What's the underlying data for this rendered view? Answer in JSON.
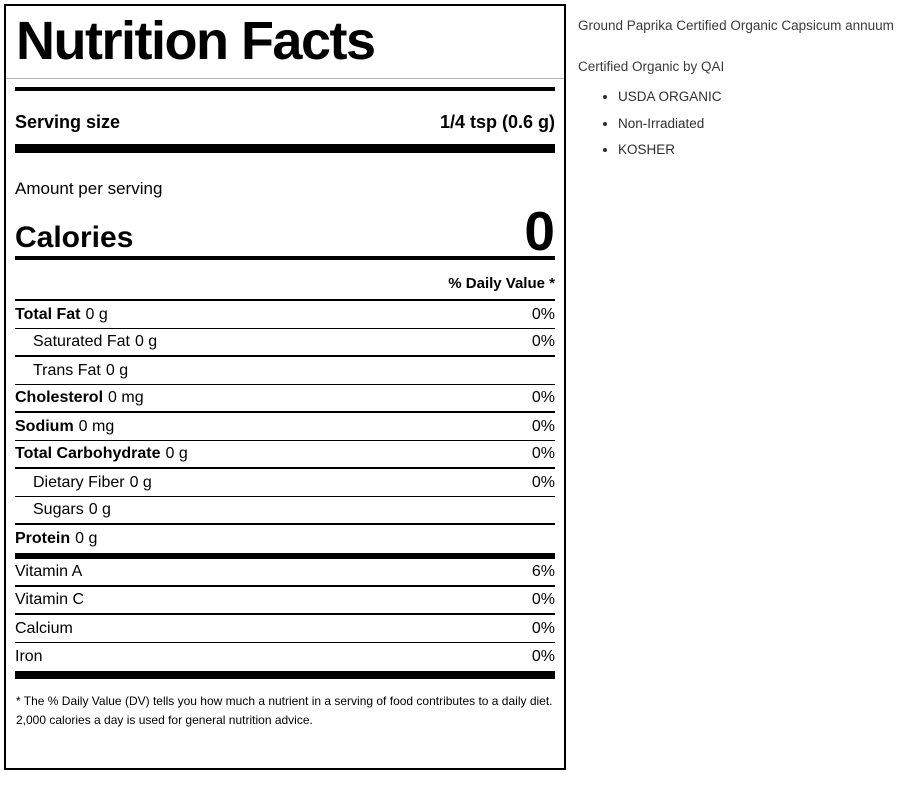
{
  "label": {
    "title": "Nutrition Facts",
    "serving_size_label": "Serving size",
    "serving_size_value": "1/4 tsp (0.6 g)",
    "amount_per_serving": "Amount per serving",
    "calories_label": "Calories",
    "calories_value": "0",
    "daily_value_header": "% Daily Value *",
    "nutrients": [
      {
        "label": "Total Fat",
        "amount": "0 g",
        "dv": "0%",
        "style": "main",
        "sep": 1
      },
      {
        "label": "Saturated Fat",
        "amount": "0 g",
        "dv": "0%",
        "style": "sub",
        "sep": 2
      },
      {
        "label": "Trans Fat",
        "amount": "0 g",
        "dv": "",
        "style": "sub",
        "sep": 1
      },
      {
        "label": "Cholesterol",
        "amount": "0 mg",
        "dv": "0%",
        "style": "main",
        "sep": 2
      },
      {
        "label": "Sodium",
        "amount": "0 mg",
        "dv": "0%",
        "style": "main",
        "sep": 1
      },
      {
        "label": "Total Carbohydrate",
        "amount": "0 g",
        "dv": "0%",
        "style": "main",
        "sep": 2
      },
      {
        "label": "Dietary Fiber",
        "amount": "0 g",
        "dv": "0%",
        "style": "sub",
        "sep": 1
      },
      {
        "label": "Sugars",
        "amount": "0 g",
        "dv": "",
        "style": "sub",
        "sep": 2
      },
      {
        "label": "Protein",
        "amount": "0 g",
        "dv": "",
        "style": "main",
        "sep": 0
      }
    ],
    "vitamins": [
      {
        "label": "Vitamin A",
        "amount": "",
        "dv": "6%",
        "style": "plain",
        "sep": 2
      },
      {
        "label": "Vitamin C",
        "amount": "",
        "dv": "0%",
        "style": "plain",
        "sep": 2
      },
      {
        "label": "Calcium",
        "amount": "",
        "dv": "0%",
        "style": "plain",
        "sep": 1
      },
      {
        "label": "Iron",
        "amount": "",
        "dv": "0%",
        "style": "plain",
        "sep": 0
      }
    ],
    "footnote_line1": "* The % Daily Value (DV) tells you how much a nutrient in a serving of food contributes to a daily diet.",
    "footnote_line2": "2,000 calories a day is used for general nutrition advice."
  },
  "info": {
    "title": "Ground Paprika Certified Organic Capsicum annuum",
    "subtitle": "Certified Organic by QAI",
    "bullets": [
      "USDA ORGANIC",
      "Non-Irradiated",
      "KOSHER"
    ],
    "text_color": "#3b3b3b"
  },
  "colors": {
    "label_border": "#000000",
    "title_underline": "#b3b3b3",
    "label_text": "#000000"
  }
}
